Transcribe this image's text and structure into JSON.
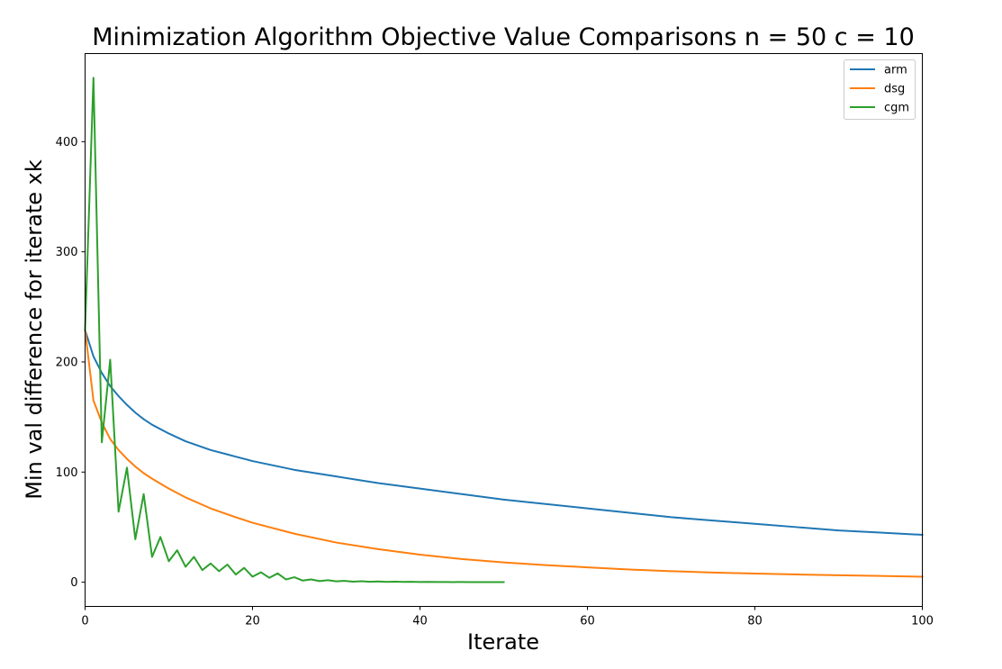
{
  "chart_data": {
    "type": "line",
    "title": "Minimization Algorithm Objective Value Comparisons n = 50 c = 10",
    "xlabel": "Iterate",
    "ylabel": "Min val difference for iterate xk",
    "xlim": [
      0,
      100
    ],
    "ylim": [
      -22,
      480
    ],
    "xticks": [
      0,
      20,
      40,
      60,
      80,
      100
    ],
    "yticks": [
      0,
      100,
      200,
      300,
      400
    ],
    "grid": false,
    "legend_position": "top-right",
    "series": [
      {
        "name": "arm",
        "color": "#1f77b4",
        "x": [
          0,
          1,
          2,
          3,
          4,
          5,
          6,
          7,
          8,
          10,
          12,
          15,
          18,
          20,
          25,
          30,
          35,
          40,
          45,
          50,
          55,
          60,
          65,
          70,
          75,
          80,
          85,
          90,
          95,
          100
        ],
        "y": [
          229,
          205,
          190,
          178,
          169,
          161,
          154,
          148,
          143,
          135,
          128,
          120,
          114,
          110,
          102,
          96,
          90,
          85,
          80,
          75,
          71,
          67,
          63,
          59,
          56,
          53,
          50,
          47,
          45,
          43
        ]
      },
      {
        "name": "dsg",
        "color": "#ff7f0e",
        "x": [
          0,
          1,
          2,
          3,
          4,
          5,
          6,
          7,
          8,
          10,
          12,
          15,
          18,
          20,
          25,
          30,
          35,
          40,
          45,
          50,
          55,
          60,
          65,
          70,
          75,
          80,
          85,
          90,
          95,
          100
        ],
        "y": [
          229,
          165,
          145,
          130,
          120,
          112,
          105,
          99,
          94,
          85,
          77,
          67,
          59,
          54,
          44,
          36,
          30,
          25,
          21,
          18,
          15.5,
          13.5,
          11.5,
          10,
          8.8,
          7.8,
          7,
          6.3,
          5.7,
          5
        ]
      },
      {
        "name": "cgm",
        "color": "#2ca02c",
        "x": [
          0,
          1,
          2,
          3,
          4,
          5,
          6,
          7,
          8,
          9,
          10,
          11,
          12,
          13,
          14,
          15,
          16,
          17,
          18,
          19,
          20,
          21,
          22,
          23,
          24,
          25,
          26,
          27,
          28,
          29,
          30,
          31,
          32,
          33,
          34,
          35,
          36,
          37,
          38,
          39,
          40,
          41,
          42,
          43,
          44,
          45,
          46,
          47,
          48,
          49,
          50
        ],
        "y": [
          229,
          458,
          127,
          202,
          64,
          104,
          39,
          80,
          23,
          41,
          19,
          29,
          14,
          23,
          11,
          17,
          10,
          16,
          7,
          13,
          5,
          9,
          4,
          8,
          2.5,
          4.5,
          1.5,
          2.5,
          1,
          1.8,
          0.8,
          1.2,
          0.5,
          0.9,
          0.4,
          0.7,
          0.3,
          0.5,
          0.3,
          0.4,
          0.2,
          0.3,
          0.2,
          0.2,
          0.1,
          0.2,
          0.1,
          0.1,
          0.1,
          0.1,
          0.1
        ]
      }
    ]
  }
}
